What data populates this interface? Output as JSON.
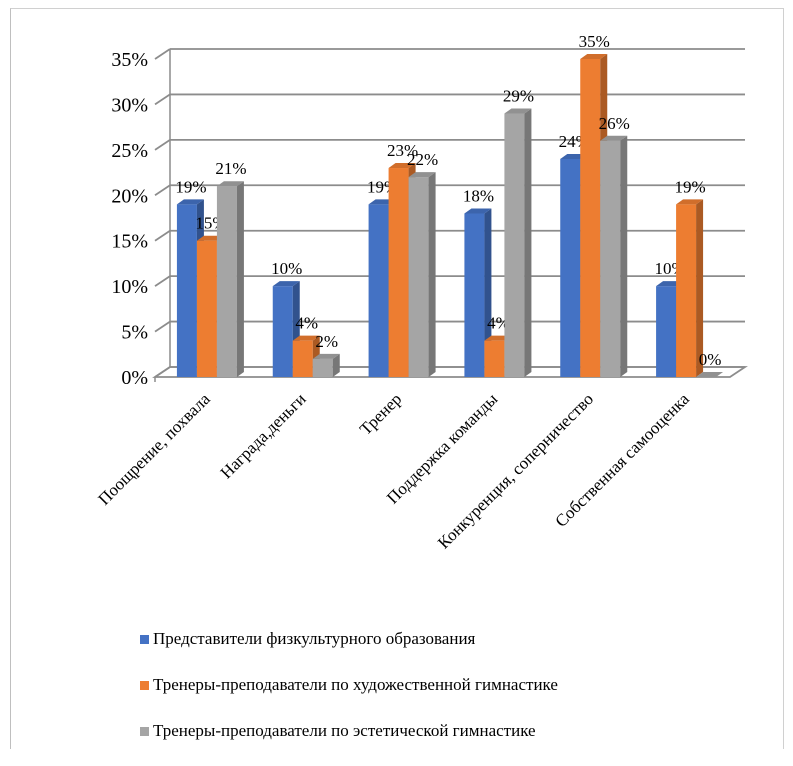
{
  "chart_data": {
    "type": "bar",
    "style": "3d-clustered-column",
    "categories": [
      "Поощрение, похвала",
      "Награда,деньги",
      "Тренер",
      "Поддержка команды",
      "Конкуренция, соперничество",
      "Собственная самооценка"
    ],
    "series": [
      {
        "name": "Представители физкультурного образования",
        "values": [
          19,
          10,
          19,
          18,
          24,
          10
        ],
        "labels": [
          "19%",
          "10%",
          "19%",
          "18%",
          "24%",
          "10%"
        ],
        "color": "#4472c4"
      },
      {
        "name": "Тренеры-преподаватели по художественной гимнастике",
        "values": [
          15,
          4,
          23,
          4,
          35,
          19
        ],
        "labels": [
          "15%",
          "4%",
          "23%",
          "4%",
          "35%",
          "19%"
        ],
        "color": "#ed7d31"
      },
      {
        "name": "Тренеры-преподаватели по эстетической гимнастике",
        "values": [
          21,
          2,
          22,
          29,
          26,
          0
        ],
        "labels": [
          "21%",
          "2%",
          "22%",
          "29%",
          "26%",
          "0%"
        ],
        "color": "#a5a5a5"
      }
    ],
    "ylim": [
      0,
      35
    ],
    "yticks": [
      "0%",
      "5%",
      "10%",
      "15%",
      "20%",
      "25%",
      "30%",
      "35%"
    ],
    "grid": true,
    "legend_position": "bottom"
  }
}
